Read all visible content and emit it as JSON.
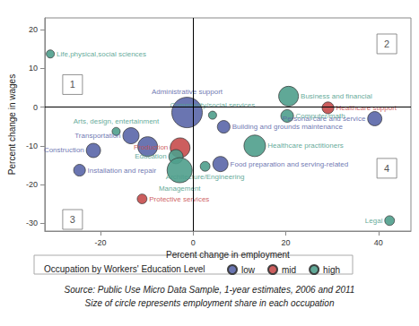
{
  "chart_data": {
    "type": "bubble",
    "x_label": "Percent change in employment",
    "y_label": "Percent change in wages",
    "xlim": [
      -32,
      47
    ],
    "ylim": [
      -32,
      23
    ],
    "xticks": [
      -20,
      0,
      20,
      40
    ],
    "yticks": [
      -30,
      -20,
      -10,
      0,
      10,
      20
    ],
    "grid": false,
    "legend": "bottom",
    "legend_title": "Occupation by Workers' Education Level",
    "notes": [
      "Source: Public Use Micro Data Sample, 1-year estimates, 2006 and 2011",
      "Size of circle represents employment share in each occupation"
    ],
    "reference_lines": {
      "x": 0,
      "y": 0
    },
    "annotations": [
      {
        "text": "1",
        "x": -26,
        "y": 5.8
      },
      {
        "text": "2",
        "x": 41.8,
        "y": 16.3
      },
      {
        "text": "3",
        "x": -26,
        "y": -29
      },
      {
        "text": "4",
        "x": 41.8,
        "y": -15.8
      }
    ],
    "series": [
      {
        "name": "low",
        "color": "#5a66a8",
        "labels": [
          "Personal care and service",
          "Administrative support",
          "Building and grounds maintenance",
          "Transportation",
          null,
          "Food preparation and serving-related",
          "Construction",
          "Installation and repair"
        ],
        "x": [
          39.2,
          -1.3,
          6.6,
          -13.4,
          -9.8,
          5.9,
          -21.5,
          -24.5
        ],
        "y": [
          -3.0,
          -1.4,
          -5.1,
          -7.4,
          -10.2,
          -14.7,
          -11.2,
          -16.3
        ],
        "size": [
          2.8,
          12.8,
          2.2,
          3.6,
          5.4,
          3.2,
          2.8,
          1.9
        ]
      },
      {
        "name": "mid",
        "color": "#c74c4c",
        "labels": [
          "Healthcare support",
          "Production",
          "Protective services"
        ],
        "x": [
          29.1,
          -2.8,
          -11.0
        ],
        "y": [
          -0.2,
          -10.5,
          -23.7
        ],
        "size": [
          1.9,
          5.4,
          1.3
        ]
      },
      {
        "name": "high",
        "color": "#4f9e8c",
        "labels": [
          "Life,physical,social sciences",
          "Business and financial",
          "Computer/math",
          "Community/social services",
          "Arts, design, entertainment",
          "Education",
          "Management",
          "Healthcare practitioners",
          "Architecture/Engineering",
          "Legal"
        ],
        "x": [
          -30.8,
          20.6,
          20.3,
          4.2,
          -16.6,
          -3.7,
          -2.9,
          13.3,
          2.6,
          42.4
        ],
        "y": [
          13.7,
          2.8,
          -2.3,
          -2.1,
          -6.3,
          -12.8,
          -16.3,
          -10.0,
          -15.3,
          -29.3
        ],
        "size": [
          0.9,
          5.4,
          2.2,
          0.9,
          0.9,
          2.8,
          8.7,
          6.4,
          1.3,
          1.3
        ]
      }
    ]
  }
}
